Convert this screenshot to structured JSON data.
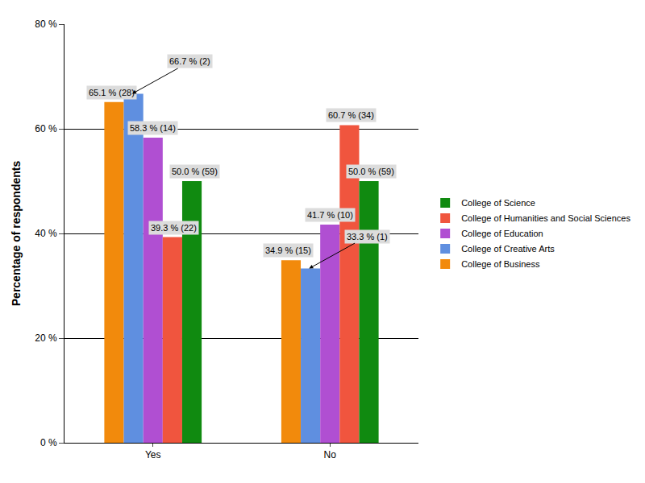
{
  "chart_data": {
    "type": "bar",
    "categories": [
      "Yes",
      "No"
    ],
    "y_label": "Percentage of respondents",
    "ylim": [
      0,
      80
    ],
    "yticks": [
      {
        "value": 0,
        "label": "0 %"
      },
      {
        "value": 20,
        "label": "20 %"
      },
      {
        "value": 40,
        "label": "40 %"
      },
      {
        "value": 60,
        "label": "60 %"
      },
      {
        "value": 80,
        "label": "80 %"
      }
    ],
    "grid": true,
    "legend": "right",
    "data_labels": true,
    "series": [
      {
        "name": "College of Business",
        "color": "#f28a0c",
        "values": [
          65.1,
          34.9
        ],
        "value_labels": [
          "65.1 % (28)",
          "34.9 % (15)"
        ]
      },
      {
        "name": "College of Creative Arts",
        "color": "#5f8fe0",
        "values": [
          66.7,
          33.3
        ],
        "value_labels": [
          "66.7 % (2)",
          "33.3 % (1)"
        ]
      },
      {
        "name": "College of Education",
        "color": "#b04fd2",
        "values": [
          58.3,
          41.7
        ],
        "value_labels": [
          "58.3 % (14)",
          "41.7 % (10)"
        ]
      },
      {
        "name": "College of Humanities and Social Sciences",
        "color": "#f0553e",
        "values": [
          39.3,
          60.7
        ],
        "value_labels": [
          "39.3 % (22)",
          "60.7 % (34)"
        ]
      },
      {
        "name": "College of Science",
        "color": "#108a10",
        "values": [
          50.0,
          50.0
        ],
        "value_labels": [
          "50.0 % (59)",
          "50.0 % (59)"
        ]
      }
    ]
  }
}
